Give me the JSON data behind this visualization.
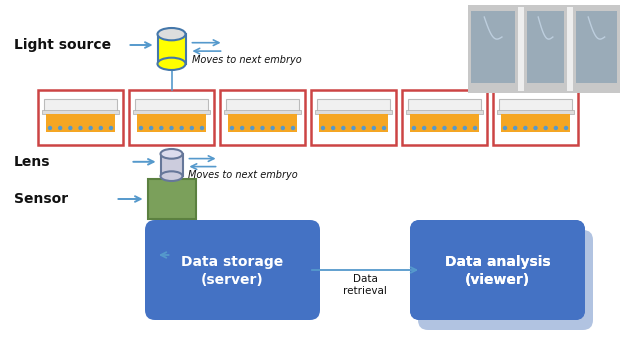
{
  "bg_color": "#ffffff",
  "light_source_label": "Light source",
  "lens_label": "Lens",
  "sensor_label": "Sensor",
  "moves_text_top": "Moves to next embryo",
  "moves_text_bottom": "Moves to next embryo",
  "data_storage_line1": "Data storage",
  "data_storage_line2": "(server)",
  "data_analysis_line1": "Data analysis",
  "data_analysis_line2": "(viewer)",
  "data_retrieval": "Data\nretrieval",
  "num_wells": 6,
  "well_color": "#F5A623",
  "well_box_color": "#CC4444",
  "light_body_color": "#FFFF00",
  "light_cap_color": "#DDDDDD",
  "light_edge_color": "#4477AA",
  "lens_body_color": "#CCCCDD",
  "lens_cap_color": "#DDDDEE",
  "lens_edge_color": "#667799",
  "sensor_color": "#7BA05B",
  "sensor_edge_color": "#5B8040",
  "box_blue": "#4472C4",
  "arrow_color": "#5599CC",
  "text_color_dark": "#111111",
  "text_color_white": "#ffffff",
  "photo_bg": "#C8C8C8",
  "photo_dark": "#707080",
  "photo_light": "#E0E0E0"
}
